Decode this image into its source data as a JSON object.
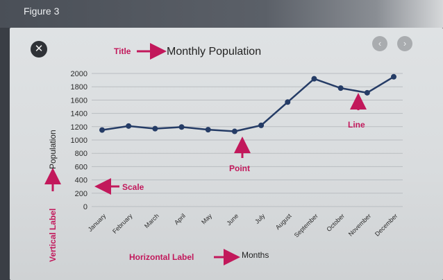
{
  "figure_label": "Figure 3",
  "chart_data": {
    "type": "line",
    "title": "Monthly Population",
    "xlabel": "Months",
    "ylabel": "Population",
    "categories": [
      "January",
      "February",
      "March",
      "April",
      "May",
      "June",
      "July",
      "August",
      "September",
      "October",
      "November",
      "December"
    ],
    "values": [
      1150,
      1210,
      1170,
      1195,
      1155,
      1130,
      1220,
      1570,
      1920,
      1780,
      1710,
      1950
    ],
    "ylim": [
      0,
      2000
    ],
    "yticks": [
      0,
      200,
      400,
      600,
      800,
      1000,
      1200,
      1400,
      1600,
      1800,
      2000
    ],
    "grid": true,
    "line_color": "#253c66"
  },
  "annotations": {
    "title": "Title",
    "scale": "Scale",
    "point": "Point",
    "line": "Line",
    "horizontal_label": "Horizontal Label",
    "vertical_label": "Vertical Label",
    "color": "#c2185b"
  },
  "controls": {
    "close_icon": "close-icon",
    "prev_icon": "chevron-left-icon",
    "next_icon": "chevron-right-icon"
  }
}
